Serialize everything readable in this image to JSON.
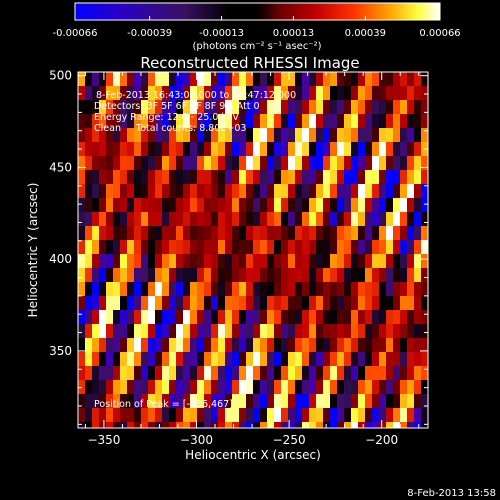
{
  "colorbar": {
    "tick_labels": [
      "-0.00066",
      "-0.00039",
      "-0.00013",
      "0.00013",
      "0.00039",
      "0.00066"
    ],
    "tick_values": [
      -0.00066,
      -0.00039,
      -0.00013,
      0.00013,
      0.00039,
      0.00066
    ],
    "range": [
      -0.00066,
      0.00066
    ],
    "unit_label": "(photons cm⁻² s⁻¹ asec⁻²)"
  },
  "chart_data": {
    "type": "heatmap",
    "title": "Reconstructed RHESSI Image",
    "xlabel": "Heliocentric X (arcsec)",
    "ylabel": "Heliocentric Y (arcsec)",
    "xlim": [
      -364,
      -175
    ],
    "ylim": [
      308,
      502
    ],
    "x_ticks": [
      -350,
      -300,
      -250,
      -200
    ],
    "y_ticks": [
      350,
      400,
      450,
      500
    ],
    "x_tick_labels": [
      "−350",
      "−300",
      "−250",
      "−200"
    ],
    "y_tick_labels": [
      "350",
      "400",
      "450",
      "500"
    ],
    "annotations": [
      "8-Feb-2013 16:43:08.000 to 16:47:12.000",
      "Detectors: 3F 5F 6F 7F 8F 9F, Att 0",
      "Energy Range: 12.0 - 25.0 keV",
      "Clean     Total counts: 8.80E+03"
    ],
    "peak_text": "Position of Peak = [-336,467]",
    "peak_position": [
      -336,
      467
    ],
    "colormap": [
      "#0000ff",
      "#4400aa",
      "#3a1060",
      "#000000",
      "#6a0000",
      "#c00000",
      "#ff4000",
      "#ffa000",
      "#ffff40",
      "#ffffff"
    ],
    "grid": false,
    "pattern": {
      "description_values": "diagonal striped fringe pattern with amplitude about +/-0.00066",
      "stripe_direction_deg": 68,
      "stripe_period_arcsec": 21
    }
  },
  "footer": {
    "timestamp": "8-Feb-2013 13:58"
  }
}
